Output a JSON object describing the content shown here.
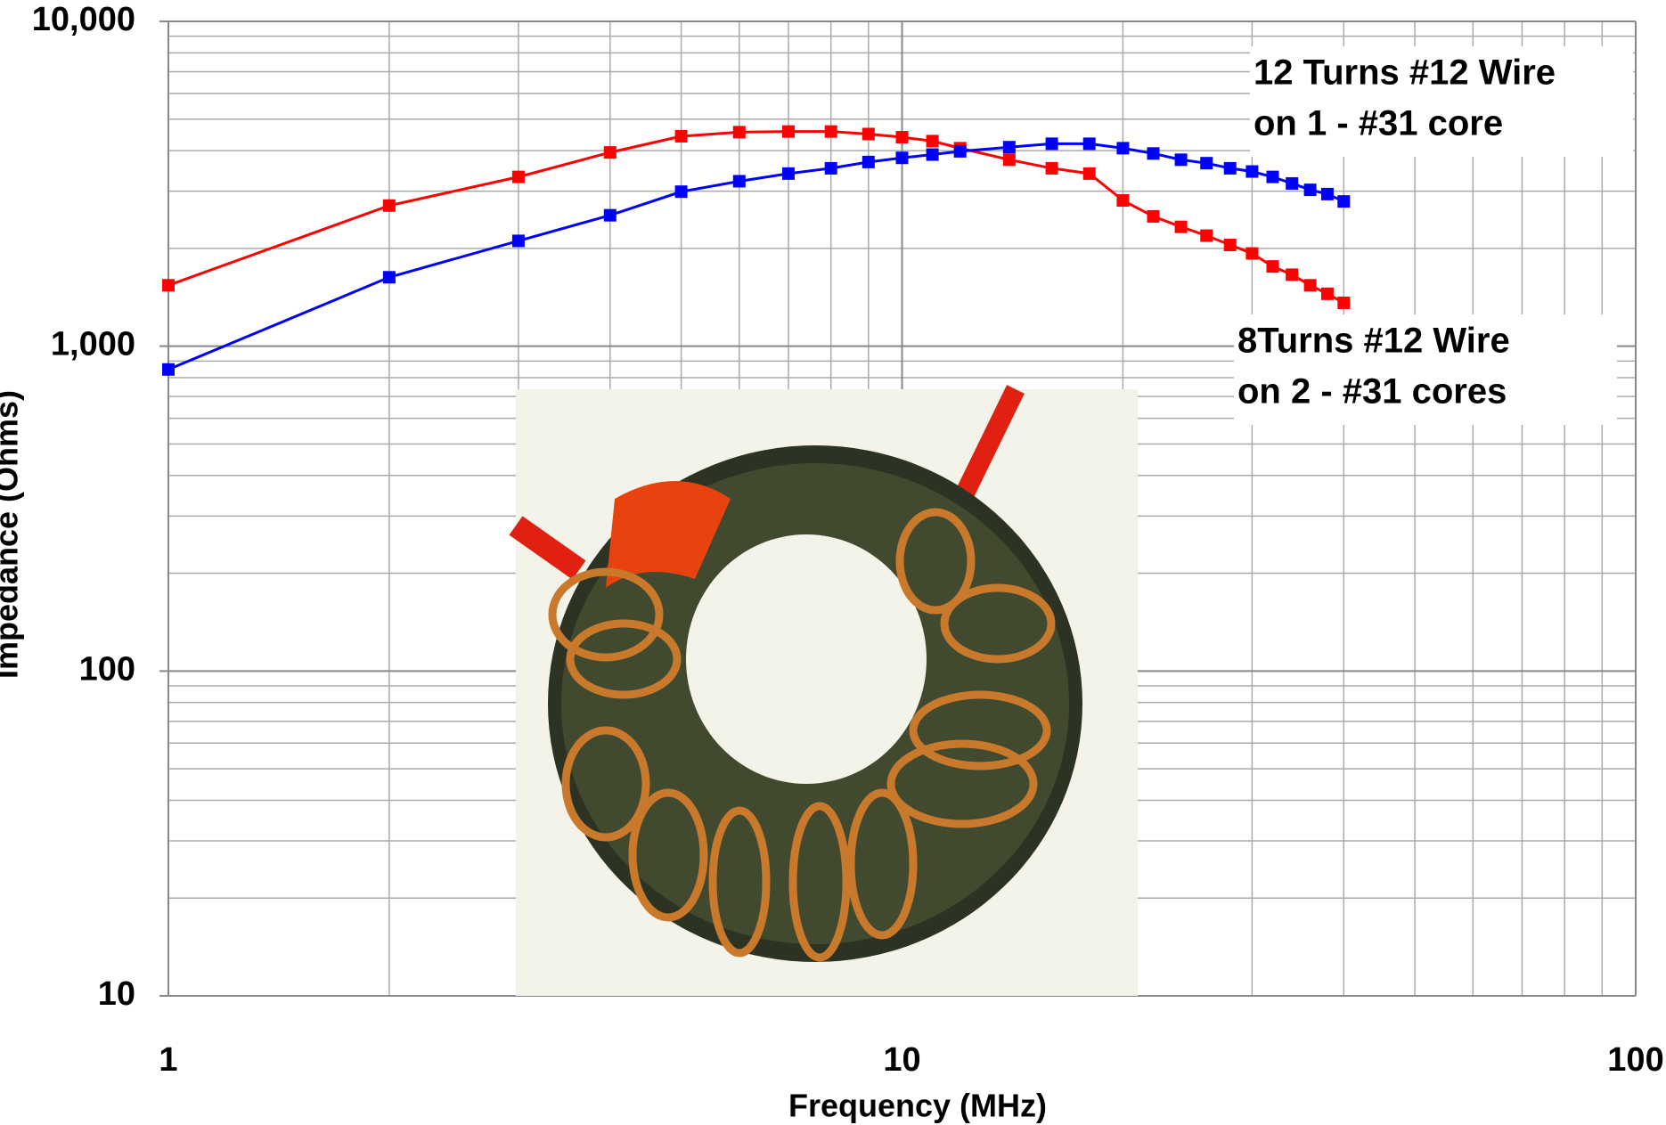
{
  "chart_data": {
    "type": "line",
    "x_label": "Frequency  (MHz)",
    "y_label": "Impedance  (Ohms)",
    "log_x": true,
    "log_y": true,
    "grid": true,
    "minor_grid": true,
    "xlim": [
      1,
      100
    ],
    "xticks": [
      1,
      10,
      100
    ],
    "ylim": [
      10,
      10000
    ],
    "yticks": [
      10,
      100,
      {
        "value": 1000,
        "label": "1,000"
      },
      {
        "value": 10000,
        "label": "10,000"
      }
    ],
    "series": [
      {
        "name": "8Turns #12 Wire",
        "color": "#ff0000",
        "x": [
          1,
          2,
          3,
          4,
          5,
          6,
          7,
          8,
          9,
          10,
          11,
          12,
          14,
          16,
          18,
          20,
          22,
          24,
          26,
          28,
          30,
          32,
          34,
          36,
          38,
          40
        ],
        "values": [
          1540,
          2710,
          3320,
          3950,
          4430,
          4560,
          4580,
          4580,
          4500,
          4400,
          4280,
          4070,
          3750,
          3530,
          3400,
          2810,
          2510,
          2330,
          2190,
          2050,
          1930,
          1760,
          1660,
          1540,
          1450,
          1360
        ]
      },
      {
        "name": "12 Turns #12 Wire",
        "color": "#0000ff",
        "x": [
          1,
          2,
          3,
          4,
          5,
          6,
          7,
          8,
          9,
          10,
          11,
          12,
          14,
          16,
          18,
          20,
          22,
          24,
          26,
          28,
          30,
          32,
          34,
          36,
          38,
          40
        ],
        "values": [
          848,
          1630,
          2110,
          2530,
          2990,
          3220,
          3400,
          3530,
          3690,
          3800,
          3890,
          3980,
          4100,
          4200,
          4200,
          4070,
          3920,
          3750,
          3660,
          3530,
          3450,
          3320,
          3170,
          3030,
          2940,
          2790
        ]
      }
    ],
    "annotations": [
      {
        "lines": [
          "12 Turns #12 Wire",
          "on 1 - #31 core"
        ],
        "color": "#0000ff"
      },
      {
        "lines": [
          "8Turns #12 Wire",
          "on 2 - #31 cores"
        ],
        "color": "#ff0000"
      }
    ]
  }
}
